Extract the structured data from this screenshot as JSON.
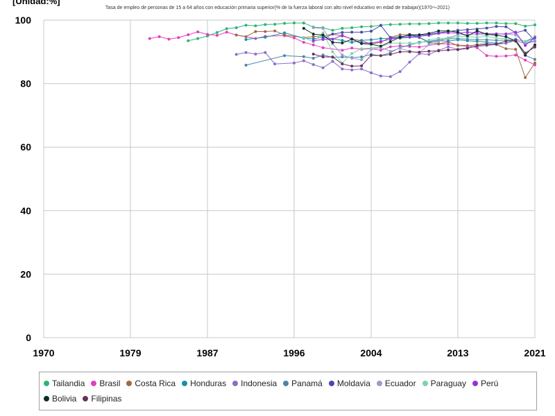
{
  "header": {
    "unit_label": "[Unidad:%]",
    "title": "Tasa de empleo de personas de 15 a 64 años con educación primaria superior(% de la fuerza laboral con alto nivel educativo en edad de trabajar)(1970〜2021)"
  },
  "chart_data": {
    "type": "line",
    "title": "Tasa de empleo de personas de 15 a 64 años con educación primaria superior(% de la fuerza laboral con alto nivel educativo en edad de trabajar)(1970〜2021)",
    "xlabel": "",
    "ylabel": "",
    "xlim": [
      1970,
      2021
    ],
    "ylim": [
      0,
      100
    ],
    "x_ticks": [
      "1970",
      "1979",
      "1987",
      "1996",
      "2004",
      "2013",
      "2021"
    ],
    "y_ticks": [
      "0",
      "20",
      "40",
      "60",
      "80",
      "100"
    ],
    "grid": true,
    "legend_position": "bottom",
    "series": [
      {
        "name": "Tailandia",
        "color": "#2bb673",
        "x": [
          1985,
          1986,
          1987,
          1988,
          1989,
          1990,
          1991,
          1992,
          1993,
          1994,
          1995,
          1996,
          1997,
          1998,
          1999,
          2000,
          2001,
          2002,
          2003,
          2004,
          2005,
          2006,
          2007,
          2008,
          2009,
          2010,
          2011,
          2012,
          2013,
          2014,
          2015,
          2016,
          2017,
          2018,
          2019,
          2020,
          2021
        ],
        "y": [
          93.5,
          94.2,
          95.0,
          96.1,
          97.3,
          97.6,
          98.4,
          98.2,
          98.6,
          98.7,
          99.0,
          99.1,
          99.1,
          97.8,
          97.6,
          96.8,
          97.4,
          97.6,
          97.9,
          98.0,
          98.4,
          98.6,
          98.7,
          98.8,
          98.8,
          98.9,
          99.1,
          99.1,
          99.1,
          99.0,
          99.0,
          99.1,
          99.1,
          98.9,
          98.9,
          98.1,
          98.5
        ]
      },
      {
        "name": "Brasil",
        "color": "#e040c0",
        "x": [
          1981,
          1982,
          1983,
          1984,
          1985,
          1986,
          1987,
          1988,
          1989,
          1990,
          1992,
          1993,
          1995,
          1996,
          1997,
          1998,
          1999,
          2001,
          2002,
          2003,
          2004,
          2005,
          2006,
          2007,
          2008,
          2009,
          2011,
          2012,
          2013,
          2014,
          2015,
          2016,
          2017,
          2018,
          2019,
          2020,
          2021
        ],
        "y": [
          94.2,
          94.8,
          94.0,
          94.5,
          95.4,
          96.3,
          95.5,
          95.2,
          96.2,
          95.3,
          94.2,
          94.9,
          95.1,
          94.4,
          93.0,
          92.2,
          91.3,
          90.5,
          91.2,
          90.8,
          91.0,
          90.5,
          91.6,
          91.9,
          91.7,
          91.5,
          92.5,
          92.5,
          92.1,
          92.0,
          91.3,
          88.8,
          88.6,
          88.7,
          89.0,
          87.4,
          85.9
        ]
      },
      {
        "name": "Costa Rica",
        "color": "#a06a44",
        "x": [
          1990,
          1991,
          1992,
          1993,
          1994,
          1995,
          1997,
          1998,
          1999,
          2000,
          2001,
          2002,
          2003,
          2004,
          2005,
          2006,
          2007,
          2008,
          2009,
          2010,
          2011,
          2012,
          2013,
          2014,
          2015,
          2016,
          2017,
          2018,
          2019,
          2020,
          2021
        ],
        "y": [
          95.3,
          94.8,
          96.4,
          96.4,
          96.6,
          95.3,
          94.5,
          94.8,
          95.0,
          95.6,
          95.0,
          94.1,
          93.5,
          92.5,
          93.0,
          94.6,
          95.4,
          95.5,
          94.5,
          93.0,
          92.5,
          93.2,
          92.0,
          91.8,
          92.3,
          92.6,
          92.3,
          91.0,
          90.8,
          81.9,
          86.5
        ]
      },
      {
        "name": "Honduras",
        "color": "#1a8fa6",
        "x": [
          1991,
          1993,
          1995,
          1997,
          1998,
          1999,
          2001,
          2002,
          2003,
          2004,
          2005,
          2006,
          2007,
          2008,
          2009,
          2010,
          2011,
          2012,
          2013,
          2014,
          2015,
          2016,
          2017,
          2018,
          2019,
          2020,
          2021
        ],
        "y": [
          93.9,
          94.6,
          96.0,
          94.3,
          94.1,
          94.6,
          93.6,
          93.0,
          93.6,
          93.8,
          94.2,
          94.3,
          94.3,
          94.6,
          94.6,
          93.1,
          93.5,
          93.4,
          93.8,
          93.5,
          93.3,
          93.1,
          92.7,
          92.7,
          94.0,
          93.2,
          94.4
        ]
      },
      {
        "name": "Indonesia",
        "color": "#8c6cc8",
        "x": [
          1990,
          1991,
          1992,
          1993,
          1994,
          1996,
          1997,
          1998,
          1999,
          2000,
          2001,
          2002,
          2003,
          2004,
          2005,
          2006,
          2007,
          2008,
          2009,
          2010,
          2011,
          2012,
          2013,
          2014,
          2015,
          2016,
          2017,
          2018,
          2019,
          2020,
          2021
        ],
        "y": [
          89.2,
          89.8,
          89.3,
          89.8,
          86.2,
          86.5,
          87.2,
          86.0,
          85.0,
          87.0,
          84.6,
          84.3,
          84.6,
          83.4,
          82.4,
          82.2,
          83.8,
          86.8,
          89.4,
          89.2,
          90.5,
          91.6,
          90.8,
          91.3,
          91.7,
          92.0,
          92.3,
          92.8,
          93.5,
          92.6,
          93.3
        ]
      },
      {
        "name": "Panamá",
        "color": "#4a86a8",
        "x": [
          1991,
          1995,
          1997,
          1998,
          1999,
          2000,
          2001,
          2002,
          2003,
          2004,
          2005,
          2006,
          2007,
          2008,
          2009,
          2010,
          2011,
          2012,
          2013,
          2014,
          2015,
          2016,
          2017,
          2018,
          2019,
          2020,
          2021
        ],
        "y": [
          85.8,
          88.8,
          88.5,
          88.0,
          89.0,
          88.3,
          88.4,
          88.2,
          88.4,
          89.2,
          88.8,
          89.8,
          91.3,
          92.2,
          93.0,
          93.3,
          93.8,
          94.1,
          94.2,
          94.0,
          93.8,
          93.8,
          93.6,
          93.7,
          93.6,
          88.9,
          87.6
        ]
      },
      {
        "name": "Moldavia",
        "color": "#4848b0",
        "x": [
          1999,
          2000,
          2001,
          2002,
          2003,
          2004,
          2005,
          2006,
          2007,
          2008,
          2009,
          2010,
          2011,
          2012,
          2013,
          2014,
          2015,
          2016,
          2017,
          2018,
          2019,
          2020,
          2021
        ],
        "y": [
          94.2,
          95.6,
          96.1,
          96.2,
          96.2,
          96.5,
          98.3,
          94.4,
          94.8,
          95.1,
          95.2,
          95.5,
          96.0,
          96.4,
          96.8,
          97.0,
          97.2,
          97.5,
          98.0,
          97.9,
          96.0,
          96.8,
          93.5
        ]
      },
      {
        "name": "Ecuador",
        "color": "#9a9ad0",
        "x": [
          1998,
          1999,
          2000,
          2001,
          2002,
          2003,
          2004,
          2005,
          2006,
          2007,
          2008,
          2009,
          2010,
          2011,
          2012,
          2013,
          2014,
          2015,
          2016,
          2017,
          2018,
          2019,
          2020,
          2021
        ],
        "y": [
          97.6,
          97.4,
          92.5,
          89.0,
          88.0,
          87.5,
          90.8,
          91.3,
          90.2,
          91.1,
          90.2,
          89.7,
          92.3,
          93.3,
          94.4,
          95.4,
          95.5,
          95.5,
          95.3,
          95.6,
          95.7,
          95.3,
          92.9,
          93.5
        ]
      },
      {
        "name": "Paraguay",
        "color": "#7ed3a8",
        "x": [
          1997,
          1998,
          1999,
          2000,
          2001,
          2002,
          2003,
          2004,
          2005,
          2006,
          2007,
          2008,
          2009,
          2010,
          2011,
          2012,
          2013,
          2014,
          2015,
          2016,
          2017,
          2018,
          2019,
          2020,
          2021
        ],
        "y": [
          94.5,
          93.2,
          96.0,
          90.0,
          86.5,
          89.5,
          91.0,
          91.2,
          91.6,
          92.8,
          92.7,
          92.8,
          92.7,
          93.7,
          94.3,
          94.3,
          94.8,
          94.8,
          94.6,
          94.9,
          94.3,
          94.2,
          93.8,
          93.3,
          94.9
        ]
      },
      {
        "name": "Perú",
        "color": "#9c2fe0",
        "x": [
          1998,
          1999,
          2000,
          2001,
          2002,
          2003,
          2004,
          2005,
          2006,
          2007,
          2008,
          2009,
          2010,
          2011,
          2012,
          2013,
          2014,
          2015,
          2016,
          2017,
          2018,
          2019,
          2020,
          2021
        ],
        "y": [
          93.5,
          93.9,
          94.0,
          95.2,
          94.0,
          92.8,
          92.8,
          93.3,
          94.0,
          94.5,
          94.7,
          94.9,
          95.2,
          95.8,
          96.0,
          95.9,
          96.2,
          95.9,
          95.7,
          95.7,
          95.6,
          96.2,
          92.0,
          94.5
        ]
      },
      {
        "name": "Bolivia",
        "color": "#0f2f26",
        "x": [
          1997,
          1998,
          1999,
          2000,
          2001,
          2002,
          2003,
          2004,
          2005,
          2006,
          2007,
          2008,
          2009,
          2010,
          2011,
          2012,
          2013,
          2014,
          2015,
          2016,
          2017,
          2018,
          2019,
          2020,
          2021
        ],
        "y": [
          97.4,
          95.6,
          95.3,
          93.0,
          92.8,
          94.0,
          92.6,
          92.4,
          91.8,
          93.2,
          94.6,
          95.4,
          95.4,
          95.8,
          96.6,
          96.6,
          96.2,
          95.0,
          96.6,
          95.6,
          95.2,
          94.8,
          93.4,
          89.0,
          92.2
        ]
      },
      {
        "name": "Filipinas",
        "color": "#6b2f5f",
        "x": [
          1998,
          1999,
          2000,
          2001,
          2002,
          2003,
          2004,
          2005,
          2006,
          2007,
          2008,
          2009,
          2010,
          2011,
          2012,
          2013,
          2014,
          2015,
          2016,
          2017,
          2018,
          2019,
          2020,
          2021
        ],
        "y": [
          89.3,
          88.4,
          88.4,
          86.2,
          85.5,
          85.6,
          88.9,
          88.8,
          89.2,
          90.0,
          90.0,
          89.9,
          90.2,
          90.3,
          90.6,
          90.7,
          91.1,
          92.0,
          92.3,
          92.5,
          93.4,
          93.7,
          89.6,
          91.5
        ]
      }
    ]
  }
}
